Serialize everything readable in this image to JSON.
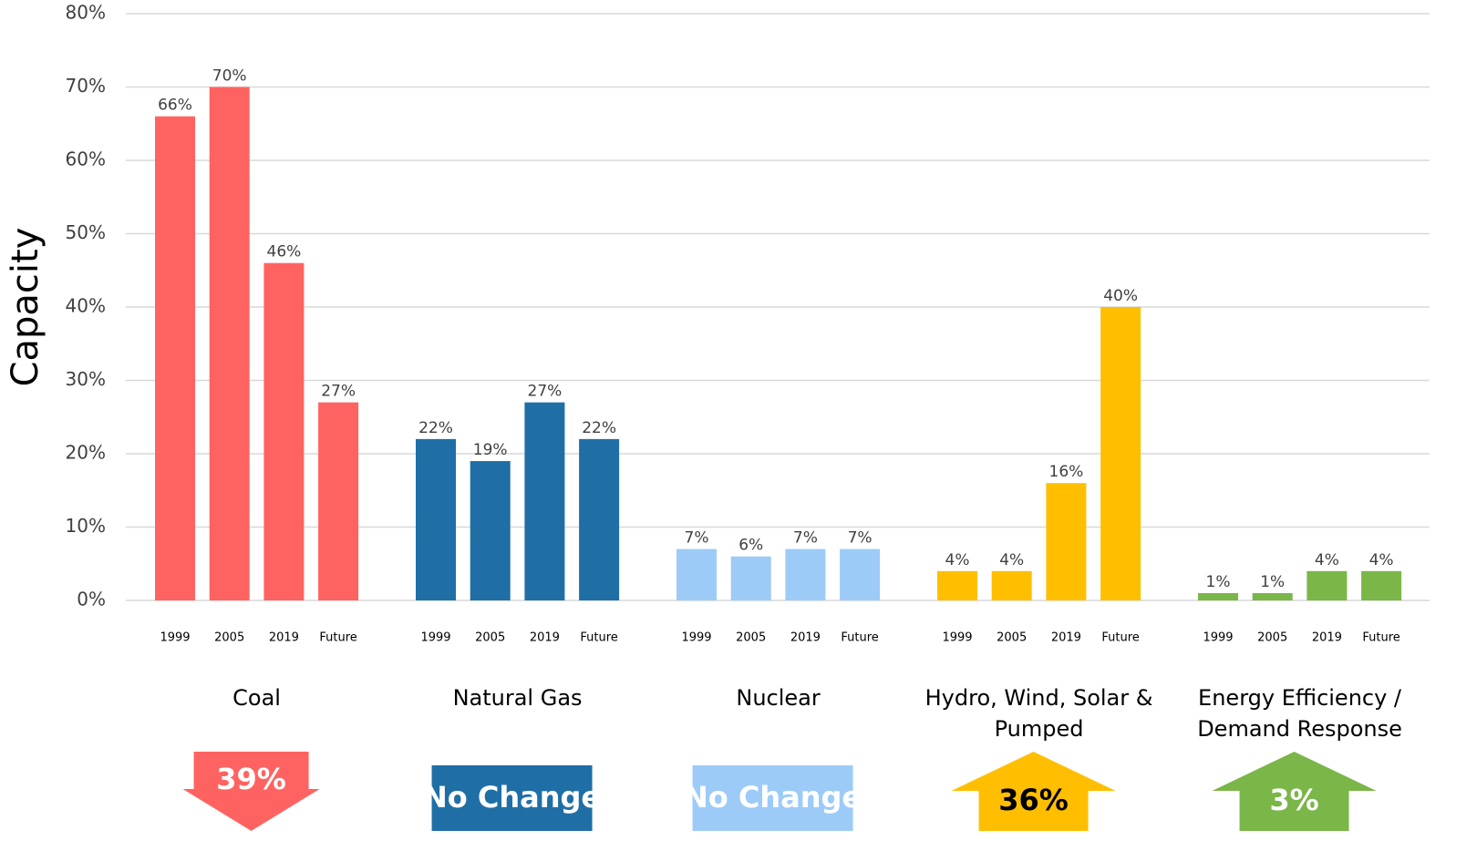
{
  "chart_data": {
    "type": "bar",
    "y_label": "Capacity",
    "ylim": [
      0,
      80
    ],
    "yticks": [
      {
        "value": 0,
        "label": "0%"
      },
      {
        "value": 10,
        "label": "10%"
      },
      {
        "value": 20,
        "label": "20%"
      },
      {
        "value": 30,
        "label": "30%"
      },
      {
        "value": 40,
        "label": "40%"
      },
      {
        "value": 50,
        "label": "50%"
      },
      {
        "value": 60,
        "label": "60%"
      },
      {
        "value": 70,
        "label": "70%"
      },
      {
        "value": 80,
        "label": "80%"
      }
    ],
    "grid": true,
    "groups": [
      {
        "name": "Coal",
        "color": "#ff6361",
        "categories": [
          "1999",
          "2005",
          "2019",
          "Future"
        ],
        "values": [
          66,
          70,
          46,
          27
        ],
        "value_labels": [
          "66%",
          "70%",
          "46%",
          "27%"
        ],
        "badge": {
          "label": "39%",
          "shape": "arrow-down",
          "text_color": "#ffffff"
        }
      },
      {
        "name": "Natural Gas",
        "color": "#1f6fa6",
        "categories": [
          "1999",
          "2005",
          "2019",
          "Future"
        ],
        "values": [
          22,
          19,
          27,
          22
        ],
        "value_labels": [
          "22%",
          "19%",
          "27%",
          "22%"
        ],
        "badge": {
          "label": "No Change",
          "shape": "box",
          "text_color": "#ffffff"
        }
      },
      {
        "name": "Nuclear",
        "color": "#9dcbf7",
        "categories": [
          "1999",
          "2005",
          "2019",
          "Future"
        ],
        "values": [
          7,
          6,
          7,
          7
        ],
        "value_labels": [
          "7%",
          "6%",
          "7%",
          "7%"
        ],
        "badge": {
          "label": "No Change",
          "shape": "box",
          "text_color": "#ffffff"
        }
      },
      {
        "name": "Hydro, Wind, Solar & Pumped",
        "color": "#ffbf00",
        "categories": [
          "1999",
          "2005",
          "2019",
          "Future"
        ],
        "values": [
          4,
          4,
          16,
          40
        ],
        "value_labels": [
          "4%",
          "4%",
          "16%",
          "40%"
        ],
        "badge": {
          "label": "36%",
          "shape": "arrow-up",
          "text_color": "#000000"
        }
      },
      {
        "name": "Energy Efficiency / Demand Response",
        "color": "#7ab648",
        "categories": [
          "1999",
          "2005",
          "2019",
          "Future"
        ],
        "values": [
          1,
          1,
          4,
          4
        ],
        "value_labels": [
          "1%",
          "1%",
          "4%",
          "4%"
        ],
        "badge": {
          "label": "3%",
          "shape": "arrow-up",
          "text_color": "#ffffff"
        }
      }
    ]
  }
}
